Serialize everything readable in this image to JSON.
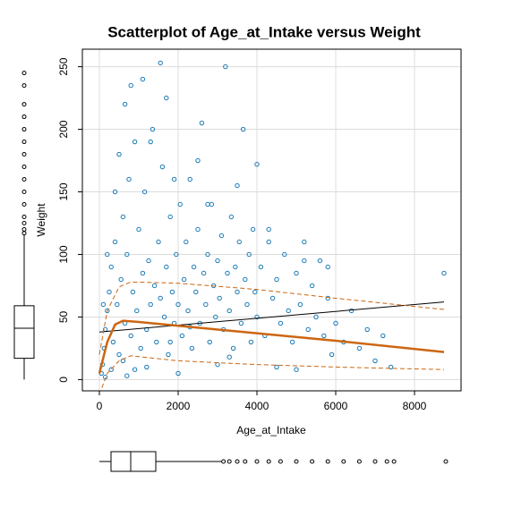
{
  "chart_data": {
    "type": "scatter",
    "title": "Scatterplot of Age_at_Intake versus Weight",
    "x_label": "Age_at_Intake",
    "y_label": "Weight",
    "xlim": [
      -432,
      9182
    ],
    "ylim": [
      -9,
      264
    ],
    "xticks": [
      0,
      2000,
      4000,
      6000,
      8000
    ],
    "yticks": [
      0,
      50,
      100,
      150,
      200,
      250
    ],
    "grid": true,
    "series": [
      {
        "color": "#1a7ab5",
        "x": [
          50,
          80,
          120,
          150,
          200,
          250,
          300,
          350,
          400,
          450,
          500,
          550,
          600,
          650,
          700,
          750,
          800,
          850,
          900,
          950,
          1000,
          1050,
          1100,
          1150,
          1200,
          1250,
          1300,
          1350,
          1400,
          1450,
          1500,
          1550,
          1600,
          1650,
          1700,
          1750,
          1800,
          1850,
          1900,
          1950,
          2000,
          2050,
          2100,
          2150,
          2200,
          2250,
          2300,
          2350,
          2400,
          2450,
          2500,
          2550,
          2600,
          2650,
          2700,
          2750,
          2800,
          2850,
          2900,
          2950,
          3000,
          3050,
          3100,
          3150,
          3200,
          3250,
          3300,
          3350,
          3400,
          3450,
          3500,
          3550,
          3600,
          3650,
          3700,
          3750,
          3800,
          3850,
          3900,
          3950,
          4000,
          4100,
          4200,
          4300,
          4400,
          4500,
          4600,
          4700,
          4800,
          4900,
          5000,
          5100,
          5200,
          5300,
          5400,
          5500,
          5600,
          5700,
          5800,
          5900,
          6000,
          6200,
          6400,
          6600,
          6800,
          7000,
          7200,
          7400,
          8750,
          1550,
          800,
          1700,
          2500,
          4000,
          600,
          900,
          1200,
          3000,
          5000,
          150,
          300,
          700,
          2000,
          4500,
          1800,
          2300,
          3300,
          100,
          200,
          400,
          500,
          650,
          1100,
          1300,
          1900,
          2750,
          3500,
          4300,
          5200,
          5800
        ],
        "values": [
          5,
          12,
          25,
          40,
          55,
          70,
          90,
          30,
          110,
          60,
          20,
          80,
          130,
          45,
          100,
          160,
          35,
          70,
          190,
          55,
          120,
          25,
          85,
          150,
          40,
          95,
          60,
          200,
          75,
          30,
          110,
          65,
          170,
          50,
          90,
          20,
          130,
          70,
          45,
          100,
          60,
          140,
          35,
          80,
          110,
          55,
          160,
          25,
          90,
          70,
          120,
          45,
          205,
          85,
          60,
          100,
          30,
          140,
          75,
          50,
          95,
          65,
          115,
          40,
          250,
          85,
          55,
          130,
          25,
          90,
          70,
          110,
          45,
          200,
          80,
          60,
          100,
          30,
          120,
          70,
          50,
          90,
          35,
          110,
          65,
          80,
          45,
          100,
          55,
          30,
          85,
          60,
          110,
          40,
          75,
          50,
          95,
          35,
          65,
          20,
          45,
          30,
          55,
          25,
          40,
          15,
          35,
          10,
          85,
          253,
          235,
          225,
          175,
          172,
          15,
          8,
          10,
          12,
          8,
          2,
          8,
          3,
          5,
          10,
          30,
          42,
          18,
          60,
          100,
          150,
          180,
          220,
          240,
          190,
          160,
          140,
          155,
          120,
          95,
          90
        ]
      }
    ],
    "fit_lines": [
      {
        "color": "#000000",
        "dashed": false,
        "x": [
          0,
          8750
        ],
        "values": [
          38,
          62
        ]
      },
      {
        "color": "#cc6611",
        "dashed": false,
        "x": [
          0,
          200,
          400,
          600,
          1000,
          2000,
          4000,
          6000,
          8750
        ],
        "values": [
          5,
          30,
          44,
          47,
          46,
          43,
          37,
          31,
          22
        ]
      },
      {
        "color": "#cc6611",
        "dashed": true,
        "x": [
          0,
          200,
          500,
          800,
          2000,
          4000,
          6000,
          8750
        ],
        "values": [
          20,
          55,
          74,
          78,
          77,
          72,
          65,
          56
        ]
      },
      {
        "color": "#cc6611",
        "dashed": true,
        "x": [
          0,
          200,
          500,
          800,
          2000,
          4000,
          6000,
          8750
        ],
        "values": [
          -12,
          5,
          15,
          19,
          15,
          12,
          10,
          8
        ]
      }
    ],
    "y_boxplot": {
      "min": 0,
      "q1": 17,
      "median": 41,
      "q3": 59,
      "max": 116,
      "outliers": [
        117,
        120,
        125,
        130,
        140,
        150,
        160,
        170,
        180,
        190,
        200,
        210,
        220,
        235,
        245
      ]
    },
    "x_boxplot": {
      "min": 0,
      "q1": 295,
      "median": 795,
      "q3": 1432,
      "max": 3110,
      "outliers": [
        3150,
        3300,
        3500,
        3700,
        4000,
        4300,
        4600,
        5000,
        5400,
        5800,
        6200,
        6600,
        7000,
        7300,
        7480,
        8795
      ]
    }
  }
}
